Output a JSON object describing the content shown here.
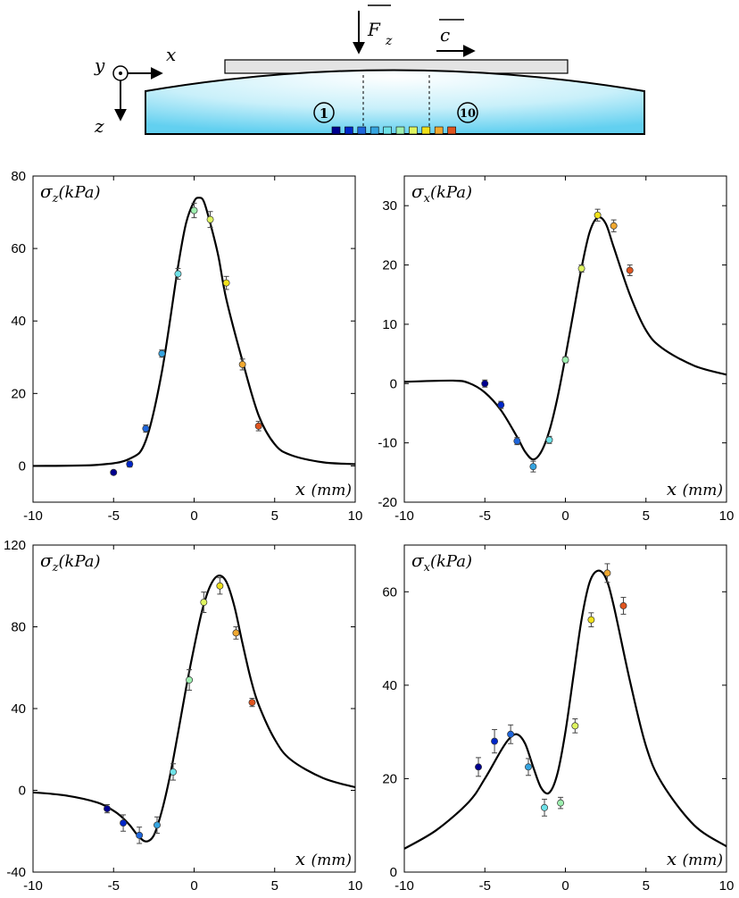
{
  "diagram": {
    "force_label": "F",
    "force_sub": "z",
    "velocity_label": "c",
    "axis_y": "y",
    "axis_x": "x",
    "axis_z": "z",
    "sensor_first": "1",
    "sensor_last": "10",
    "sensor_colors": [
      "#00008f",
      "#0026c8",
      "#1f66dc",
      "#35a4e0",
      "#6ee2e8",
      "#9ef0b0",
      "#dff560",
      "#f0e11a",
      "#f0a830",
      "#e0551f"
    ]
  },
  "chart_data": [
    {
      "type": "scatter+line",
      "ylabel_sym": "σ",
      "ylabel_sub": "z",
      "ylabel_unit": "(kPa)",
      "xlabel": "x",
      "xlabel_unit": "(mm)",
      "xlim": [
        -10,
        10
      ],
      "ylim": [
        -10,
        80
      ],
      "xticks": [
        "-10",
        "-5",
        "0",
        "5",
        "10"
      ],
      "yticks": [
        0,
        20,
        40,
        60,
        80
      ],
      "ytick_labels": [
        "0",
        "20",
        "40",
        "60",
        "80"
      ],
      "curve_x": [
        -10,
        -6,
        -4,
        -3,
        -2,
        -1,
        -0.5,
        0,
        0.3,
        0.6,
        1,
        1.5,
        2,
        3,
        4,
        5,
        6,
        8,
        10
      ],
      "curve_y": [
        0,
        0.3,
        2,
        7,
        26,
        55,
        67,
        73,
        74,
        73,
        67,
        58,
        46,
        29,
        14,
        6,
        3,
        1,
        0.5
      ],
      "points": [
        {
          "x": -5,
          "y": -1.8,
          "err": 0.5
        },
        {
          "x": -4,
          "y": 0.5,
          "err": 0.8
        },
        {
          "x": -3,
          "y": 10.3,
          "err": 1
        },
        {
          "x": -2,
          "y": 31,
          "err": 1
        },
        {
          "x": -1,
          "y": 53,
          "err": 1.5
        },
        {
          "x": 0,
          "y": 70.5,
          "err": 2
        },
        {
          "x": 1,
          "y": 68,
          "err": 2.2
        },
        {
          "x": 2,
          "y": 50.5,
          "err": 1.8
        },
        {
          "x": 3,
          "y": 28,
          "err": 1.5
        },
        {
          "x": 4,
          "y": 11,
          "err": 1.3
        }
      ]
    },
    {
      "type": "scatter+line",
      "ylabel_sym": "σ",
      "ylabel_sub": "x",
      "ylabel_unit": "(kPa)",
      "xlabel": "x",
      "xlabel_unit": "(mm)",
      "xlim": [
        -10,
        10
      ],
      "ylim": [
        -20,
        35
      ],
      "xticks": [
        "-10",
        "-5",
        "0",
        "5",
        "10"
      ],
      "yticks": [
        -20,
        -10,
        0,
        10,
        20,
        30
      ],
      "ytick_labels": [
        "-20",
        "-10",
        "0",
        "10",
        "20",
        "30"
      ],
      "curve_x": [
        -10,
        -7,
        -6,
        -5,
        -4,
        -3,
        -2.5,
        -2,
        -1.5,
        -1,
        -0.5,
        0,
        0.5,
        1,
        1.5,
        2,
        2.5,
        3,
        4,
        5,
        6,
        8,
        10
      ],
      "curve_y": [
        0.3,
        0.5,
        0.1,
        -1.5,
        -4.5,
        -9,
        -11.5,
        -12.8,
        -11.5,
        -8,
        -2.5,
        4.5,
        12,
        19.5,
        25.5,
        28,
        27,
        23,
        15,
        9,
        6,
        3,
        1.5
      ],
      "points": [
        {
          "x": -5,
          "y": 0,
          "err": 0.6
        },
        {
          "x": -4,
          "y": -3.6,
          "err": 0.6
        },
        {
          "x": -3,
          "y": -9.7,
          "err": 0.6
        },
        {
          "x": -2,
          "y": -14,
          "err": 0.9
        },
        {
          "x": -1,
          "y": -9.5,
          "err": 0.6
        },
        {
          "x": 0,
          "y": 4,
          "err": 0.5
        },
        {
          "x": 1,
          "y": 19.4,
          "err": 0.6
        },
        {
          "x": 2,
          "y": 28.4,
          "err": 1
        },
        {
          "x": 3,
          "y": 26.6,
          "err": 1
        },
        {
          "x": 4,
          "y": 19.1,
          "err": 0.9
        }
      ]
    },
    {
      "type": "scatter+line",
      "ylabel_sym": "σ",
      "ylabel_sub": "z",
      "ylabel_unit": "(kPa)",
      "xlabel": "x",
      "xlabel_unit": "(mm)",
      "xlim": [
        -10,
        10
      ],
      "ylim": [
        -40,
        120
      ],
      "xticks": [
        "-10",
        "-5",
        "0",
        "5",
        "10"
      ],
      "yticks": [
        -40,
        0,
        40,
        80,
        120
      ],
      "ytick_labels": [
        "-40",
        "0",
        "40",
        "80",
        "120"
      ],
      "curve_x": [
        -10,
        -8,
        -6,
        -5,
        -4.5,
        -4,
        -3.5,
        -3,
        -2.5,
        -2,
        -1.5,
        -1,
        -0.5,
        0,
        0.5,
        1,
        1.5,
        2,
        2.5,
        3,
        3.5,
        4,
        5,
        6,
        8,
        10
      ],
      "curve_y": [
        -1,
        -2.5,
        -6,
        -10,
        -13,
        -17,
        -22,
        -25,
        -22,
        -10,
        7,
        28,
        50,
        70,
        88,
        100,
        105,
        102,
        90,
        72,
        55,
        42,
        25,
        15,
        6,
        1.5
      ],
      "points": [
        {
          "x": -5.4,
          "y": -9,
          "err": 2
        },
        {
          "x": -4.4,
          "y": -16,
          "err": 4
        },
        {
          "x": -3.4,
          "y": -22,
          "err": 4
        },
        {
          "x": -2.3,
          "y": -17,
          "err": 4
        },
        {
          "x": -1.3,
          "y": 9,
          "err": 4
        },
        {
          "x": -0.3,
          "y": 54,
          "err": 5
        },
        {
          "x": 0.6,
          "y": 92,
          "err": 5
        },
        {
          "x": 1.6,
          "y": 100,
          "err": 4
        },
        {
          "x": 2.6,
          "y": 77,
          "err": 3
        },
        {
          "x": 3.6,
          "y": 43,
          "err": 2
        }
      ]
    },
    {
      "type": "scatter+line",
      "ylabel_sym": "σ",
      "ylabel_sub": "x",
      "ylabel_unit": "(kPa)",
      "xlabel": "x",
      "xlabel_unit": "(mm)",
      "xlim": [
        -10,
        10
      ],
      "ylim": [
        0,
        70
      ],
      "xticks": [
        "-10",
        "-5",
        "0",
        "5",
        "10"
      ],
      "yticks": [
        0,
        20,
        40,
        60
      ],
      "ytick_labels": [
        "0",
        "20",
        "40",
        "60"
      ],
      "curve_x": [
        -10,
        -8,
        -6,
        -5,
        -4,
        -3.5,
        -3,
        -2.5,
        -2,
        -1.5,
        -1,
        -0.5,
        0,
        0.5,
        1,
        1.5,
        2,
        2.5,
        3,
        4,
        5,
        6,
        8,
        10
      ],
      "curve_y": [
        5,
        9,
        15,
        20,
        26,
        28.5,
        29.5,
        27.5,
        22.5,
        18,
        17,
        21,
        30,
        42,
        54,
        62,
        64.5,
        63,
        57,
        41,
        27,
        19,
        10,
        5.5
      ],
      "points": [
        {
          "x": -5.4,
          "y": 22.5,
          "err": 2
        },
        {
          "x": -4.4,
          "y": 28,
          "err": 2.5
        },
        {
          "x": -3.4,
          "y": 29.5,
          "err": 2
        },
        {
          "x": -2.3,
          "y": 22.5,
          "err": 1.8
        },
        {
          "x": -1.3,
          "y": 13.8,
          "err": 1.8
        },
        {
          "x": -0.3,
          "y": 14.8,
          "err": 1.2
        },
        {
          "x": 0.6,
          "y": 31.3,
          "err": 1.5
        },
        {
          "x": 1.6,
          "y": 54,
          "err": 1.5
        },
        {
          "x": 2.6,
          "y": 64,
          "err": 2
        },
        {
          "x": 3.6,
          "y": 57,
          "err": 1.8
        }
      ]
    }
  ]
}
